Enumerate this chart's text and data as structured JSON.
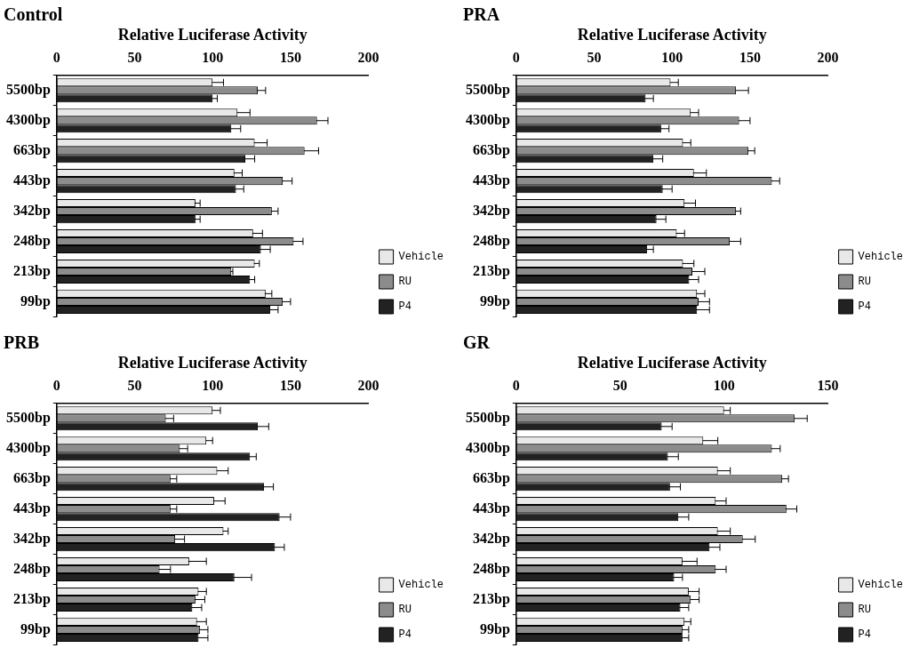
{
  "chart_data": [
    {
      "type": "bar",
      "orientation": "horizontal",
      "title": "Control",
      "xlabel": "Relative Luciferase Activity",
      "categories": [
        "5500bp",
        "4300bp",
        "663bp",
        "443bp",
        "342bp",
        "248bp",
        "213bp",
        "99bp"
      ],
      "xlim": [
        0,
        200
      ],
      "xticks": [
        0,
        50,
        100,
        150,
        200
      ],
      "grid": false,
      "legend": "bottom right",
      "series": [
        {
          "name": "Vehicle",
          "color": "#e8e8e8",
          "values": [
            100,
            116,
            127,
            114,
            89,
            126,
            127,
            134
          ],
          "errors": [
            7,
            8,
            8,
            5,
            3,
            6,
            3,
            4
          ]
        },
        {
          "name": "RU",
          "color": "#8c8c8c",
          "values": [
            129,
            167,
            159,
            145,
            138,
            152,
            112,
            145
          ],
          "errors": [
            5,
            7,
            9,
            6,
            4,
            6,
            1,
            5
          ]
        },
        {
          "name": "P4",
          "color": "#222222",
          "values": [
            100,
            112,
            121,
            115,
            89,
            131,
            124,
            137
          ],
          "errors": [
            3,
            6,
            6,
            5,
            3,
            6,
            3,
            5
          ]
        }
      ]
    },
    {
      "type": "bar",
      "orientation": "horizontal",
      "title": "PRA",
      "xlabel": "Relative Luciferase Activity",
      "categories": [
        "5500bp",
        "4300bp",
        "663bp",
        "443bp",
        "342bp",
        "248bp",
        "213bp",
        "99bp"
      ],
      "xlim": [
        0,
        200
      ],
      "xticks": [
        0,
        50,
        100,
        150,
        200
      ],
      "grid": false,
      "legend": "bottom right",
      "series": [
        {
          "name": "Vehicle",
          "color": "#e8e8e8",
          "values": [
            99,
            112,
            107,
            114,
            108,
            103,
            107,
            116
          ],
          "errors": [
            5,
            5,
            5,
            8,
            7,
            5,
            7,
            5
          ]
        },
        {
          "name": "RU",
          "color": "#8c8c8c",
          "values": [
            141,
            143,
            149,
            164,
            141,
            137,
            113,
            117
          ],
          "errors": [
            8,
            7,
            4,
            5,
            3,
            7,
            8,
            7
          ]
        },
        {
          "name": "P4",
          "color": "#222222",
          "values": [
            83,
            93,
            88,
            94,
            90,
            84,
            111,
            116
          ],
          "errors": [
            5,
            5,
            6,
            6,
            6,
            4,
            6,
            8
          ]
        }
      ]
    },
    {
      "type": "bar",
      "orientation": "horizontal",
      "title": "PRB",
      "xlabel": "Relative Luciferase Activity",
      "categories": [
        "5500bp",
        "4300bp",
        "663bp",
        "443bp",
        "342bp",
        "248bp",
        "213bp",
        "99bp"
      ],
      "xlim": [
        0,
        200
      ],
      "xticks": [
        0,
        50,
        100,
        150,
        200
      ],
      "grid": false,
      "legend": "bottom right",
      "series": [
        {
          "name": "Vehicle",
          "color": "#e8e8e8",
          "values": [
            100,
            96,
            103,
            101,
            107,
            85,
            91,
            90
          ],
          "errors": [
            5,
            4,
            7,
            7,
            3,
            11,
            5,
            6
          ]
        },
        {
          "name": "RU",
          "color": "#8c8c8c",
          "values": [
            70,
            79,
            73,
            73,
            76,
            66,
            89,
            92
          ],
          "errors": [
            5,
            5,
            4,
            4,
            6,
            7,
            6,
            5
          ]
        },
        {
          "name": "P4",
          "color": "#222222",
          "values": [
            129,
            124,
            133,
            143,
            140,
            114,
            87,
            91
          ],
          "errors": [
            7,
            4,
            6,
            7,
            6,
            11,
            6,
            6
          ]
        }
      ]
    },
    {
      "type": "bar",
      "orientation": "horizontal",
      "title": "GR",
      "xlabel": "Relative Luciferase Activity",
      "categories": [
        "5500bp",
        "4300bp",
        "663bp",
        "443bp",
        "342bp",
        "248bp",
        "213bp",
        "99bp"
      ],
      "xlim": [
        0,
        150
      ],
      "xticks": [
        0,
        50,
        100,
        150
      ],
      "grid": false,
      "legend": "bottom right",
      "series": [
        {
          "name": "Vehicle",
          "color": "#e8e8e8",
          "values": [
            100,
            90,
            97,
            96,
            97,
            80,
            83,
            81
          ],
          "errors": [
            3,
            7,
            6,
            5,
            6,
            7,
            5,
            3
          ]
        },
        {
          "name": "RU",
          "color": "#8c8c8c",
          "values": [
            134,
            123,
            128,
            130,
            109,
            96,
            84,
            80
          ],
          "errors": [
            6,
            4,
            3,
            5,
            6,
            5,
            4,
            3
          ]
        },
        {
          "name": "P4",
          "color": "#222222",
          "values": [
            70,
            73,
            74,
            78,
            93,
            76,
            79,
            80
          ],
          "errors": [
            5,
            5,
            5,
            5,
            5,
            4,
            4,
            3
          ]
        }
      ]
    }
  ]
}
